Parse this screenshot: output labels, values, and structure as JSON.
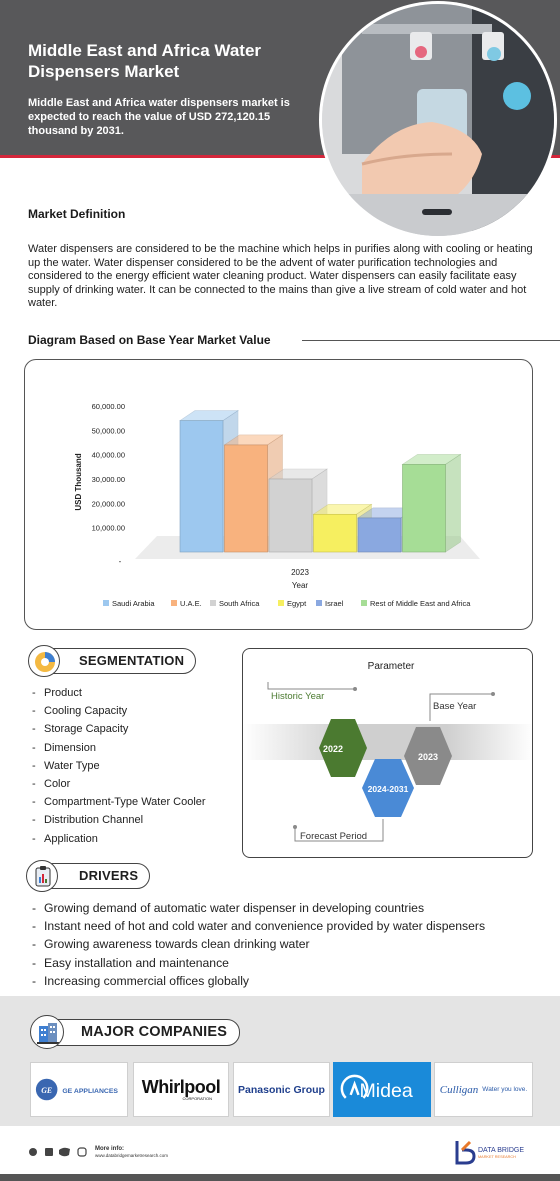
{
  "header": {
    "title": "Middle East and Africa Water Dispensers Market",
    "subtitle": "Middle East and Africa water dispensers market is expected to reach the value of USD 272,120.15 thousand by 2031."
  },
  "definition": {
    "heading": "Market Definition",
    "text": "Water dispensers are considered to be the machine which helps in purifies along with cooling or heating up the water. Water dispenser considered to be the advent of water purification technologies and considered to the energy efficient water cleaning product. Water dispensers can easily facilitate easy supply of drinking water. It can be connected to the mains than give a live stream of cold water and hot water."
  },
  "diagram": {
    "heading": "Diagram Based on Base Year Market Value"
  },
  "chart_data": {
    "type": "bar",
    "ylabel": "USD Thousand",
    "xlabel": "Year",
    "category_label": "2023",
    "ylim": [
      0,
      60000
    ],
    "yticks": [
      "10,000.00",
      "20,000.00",
      "30,000.00",
      "40,000.00",
      "50,000.00",
      "60,000.00"
    ],
    "y_min_label": "-",
    "legend_position": "bottom",
    "series": [
      {
        "name": "Saudi Arabia",
        "value": 54000,
        "color": "#9dc8ef"
      },
      {
        "name": "U.A.E.",
        "value": 44000,
        "color": "#f8b27e"
      },
      {
        "name": "South Africa",
        "value": 30000,
        "color": "#d2d2d2"
      },
      {
        "name": "Egypt",
        "value": 15500,
        "color": "#f6ef60"
      },
      {
        "name": "Israel",
        "value": 14000,
        "color": "#8aa8e0"
      },
      {
        "name": "Rest of Middle East and Africa",
        "value": 36000,
        "color": "#a6dd96"
      }
    ]
  },
  "segmentation": {
    "title": "SEGMENTATION",
    "items": [
      "Product",
      "Cooling Capacity",
      "Storage Capacity",
      "Dimension",
      "Water Type",
      "Color",
      "Compartment-Type Water Cooler",
      "Distribution Channel",
      "Application"
    ]
  },
  "parameter": {
    "title": "Parameter",
    "historic_label": "Historic Year",
    "base_label": "Base Year",
    "forecast_label": "Forecast Period",
    "historic_year": "2022",
    "forecast_years": "2024-2031",
    "base_year": "2023"
  },
  "drivers": {
    "title": "DRIVERS",
    "items": [
      "Growing demand of automatic water dispenser in developing countries",
      "Instant need of hot and cold water and convenience provided by water dispensers",
      "Growing awareness towards clean drinking water",
      "Easy installation and maintenance",
      "Increasing commercial offices globally"
    ]
  },
  "companies": {
    "title": "MAJOR COMPANIES",
    "logos": {
      "ge_mark": "GE",
      "ge": "GE APPLIANCES",
      "whirlpool": "Whirlpool",
      "whirlpool_sub": "CORPORATION",
      "panasonic": "Panasonic Group",
      "midea": "Midea",
      "culligan": "Culligan",
      "culligan_tag": "Water you love."
    }
  },
  "footer": {
    "more_info": "More info:",
    "url": "www.databridgemarketresearch.com",
    "brand": "DATA BRIDGE",
    "brand_sub": "MARKET RESEARCH"
  },
  "colors": {
    "header_bg": "#58585a",
    "accent_red": "#d4263b",
    "historic_green": "#4b7a30",
    "forecast_blue": "#4a8ad6",
    "base_gray": "#8a8a8a"
  }
}
